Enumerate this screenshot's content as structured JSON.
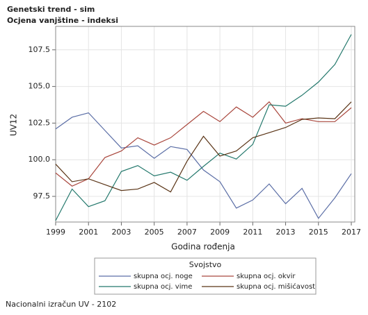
{
  "chart_data": {
    "type": "line",
    "title": "Genetski trend - sim",
    "subtitle": "Ocjena vanjštine - indeksi",
    "x_label": "Godina rođenja",
    "y_label": "UV12",
    "legend_title": "Svojstvo",
    "footnote": "Nacionalni izračun UV - 2102",
    "x": [
      1999,
      2000,
      2001,
      2002,
      2003,
      2004,
      2005,
      2006,
      2007,
      2008,
      2009,
      2010,
      2011,
      2012,
      2013,
      2014,
      2015,
      2016,
      2017
    ],
    "xlim": [
      1999,
      2017
    ],
    "xticks": [
      1999,
      2001,
      2003,
      2005,
      2007,
      2009,
      2011,
      2013,
      2015,
      2017
    ],
    "ylim": [
      95.75,
      109.1
    ],
    "yticks": [
      97.5,
      {
        "value": 100,
        "label": "100.0"
      },
      102.5,
      {
        "value": 105,
        "label": "105.0"
      },
      107.5
    ],
    "grid": true,
    "series": [
      {
        "name": "skupna ocj. noge",
        "color": "#5b6ea6",
        "values": [
          102.1,
          102.9,
          103.2,
          102.0,
          100.8,
          100.95,
          100.1,
          100.9,
          100.7,
          99.3,
          98.5,
          96.7,
          97.25,
          98.35,
          97.0,
          98.05,
          96.0,
          97.4,
          99.05
        ]
      },
      {
        "name": "skupna ocj. okvir",
        "color": "#a9473d",
        "values": [
          99.1,
          98.2,
          98.7,
          100.15,
          100.6,
          101.5,
          101.0,
          101.5,
          102.4,
          103.3,
          102.6,
          103.6,
          102.9,
          103.95,
          102.5,
          102.8,
          102.6,
          102.6,
          103.55
        ]
      },
      {
        "name": "skupna ocj. vime",
        "color": "#23786c",
        "values": [
          95.85,
          98.0,
          96.8,
          97.2,
          99.2,
          99.6,
          98.9,
          99.15,
          98.6,
          99.55,
          100.45,
          100.05,
          101.05,
          103.75,
          103.65,
          104.4,
          105.3,
          106.5,
          108.55
        ]
      },
      {
        "name": "skupna ocj. mišićavost",
        "color": "#5a3416",
        "values": [
          99.7,
          98.5,
          98.7,
          98.3,
          97.9,
          98.0,
          98.45,
          97.8,
          99.9,
          101.6,
          100.25,
          100.6,
          101.5,
          101.85,
          102.2,
          102.75,
          102.85,
          102.8,
          103.95
        ]
      }
    ]
  }
}
